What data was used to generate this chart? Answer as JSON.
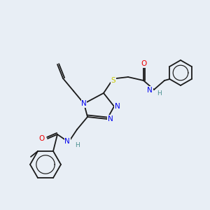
{
  "bg_color": "#e8eef5",
  "atom_colors": {
    "C": "#1a1a1a",
    "N": "#0000ee",
    "O": "#ee0000",
    "S": "#cccc00",
    "H": "#4a9090"
  },
  "bond_color": "#1a1a1a",
  "figsize": [
    3.0,
    3.0
  ],
  "dpi": 100,
  "lw": 1.3,
  "ring_lw": 0.85,
  "font_size_atom": 7.5,
  "font_size_H": 6.5
}
